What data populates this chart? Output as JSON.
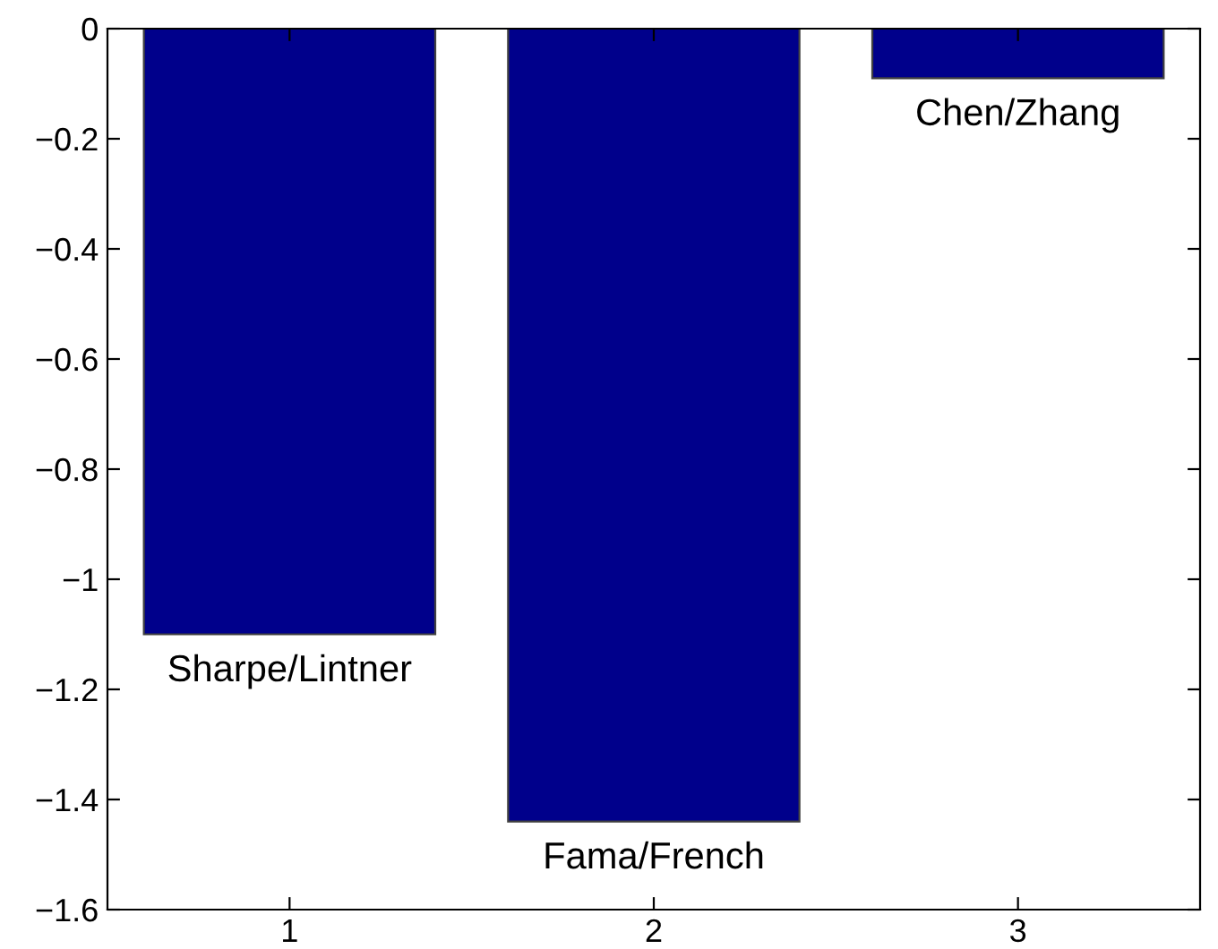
{
  "chart_data": {
    "type": "bar",
    "x": [
      1,
      2,
      3
    ],
    "values": [
      -1.1,
      -1.44,
      -0.09
    ],
    "color": "#00008b",
    "xlim": [
      0.5,
      3.5
    ],
    "xticks": [
      1,
      2,
      3
    ],
    "ylim": [
      -1.6,
      0
    ],
    "yticks": [
      -1.6,
      -1.4,
      -1.2,
      -1,
      -0.8,
      -0.6,
      -0.4,
      -0.2,
      0
    ],
    "grid": false,
    "annotations": [
      {
        "text": "Sharpe/Lintner",
        "x": 1,
        "y": -1.1
      },
      {
        "text": "Fama/French",
        "x": 2,
        "y": -1.44
      },
      {
        "text": "Chen/Zhang",
        "x": 3,
        "y": -0.09
      }
    ]
  }
}
